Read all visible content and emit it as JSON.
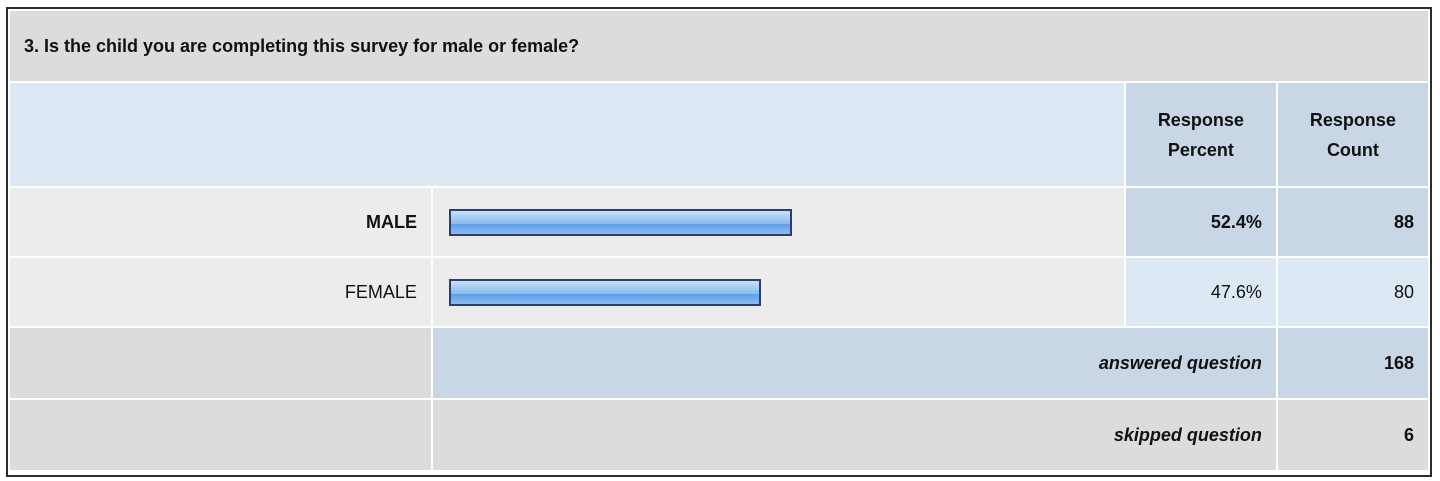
{
  "question": {
    "title": "3. Is the child you are completing this survey for male or female?"
  },
  "columns": {
    "percent_line1": "Response",
    "percent_line2": "Percent",
    "count_line1": "Response",
    "count_line2": "Count"
  },
  "answers": [
    {
      "label": "MALE",
      "percent": "52.4%",
      "count": "88",
      "bar_fraction": 0.524,
      "highlight": true
    },
    {
      "label": "FEMALE",
      "percent": "47.6%",
      "count": "80",
      "bar_fraction": 0.476,
      "highlight": false
    }
  ],
  "summary": {
    "answered_label": "answered question",
    "answered_count": "168",
    "skipped_label": "skipped question",
    "skipped_count": "6"
  },
  "colors": {
    "header_blue": "#c8d6e5",
    "light_blue": "#dde8f5",
    "grey": "#dcdcdc",
    "bar_fill": "#5c9de6",
    "bar_border": "#2a3f6e"
  }
}
